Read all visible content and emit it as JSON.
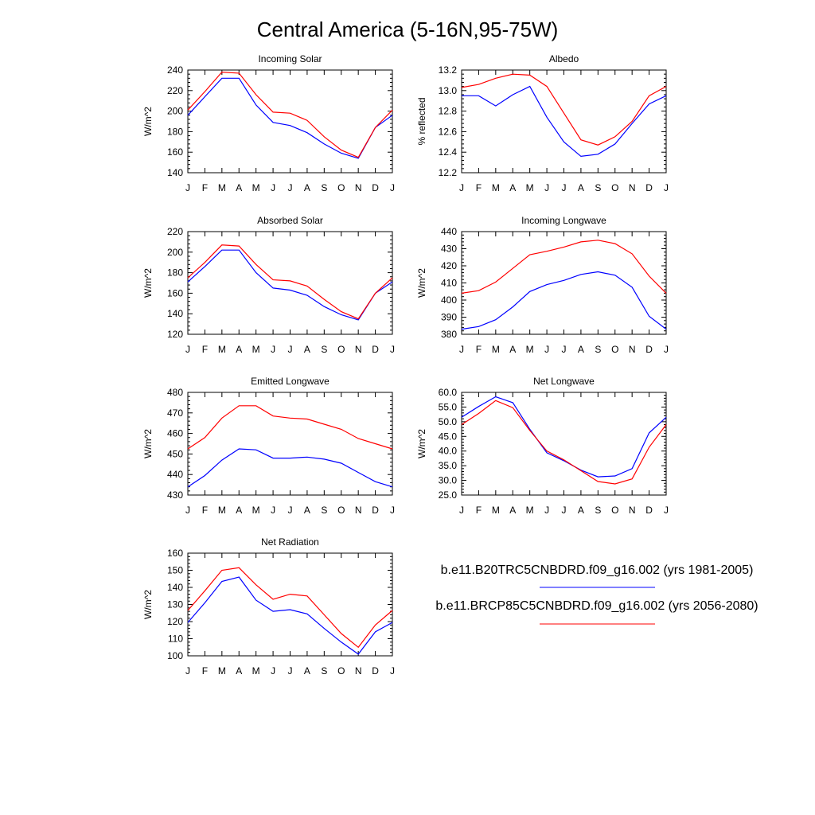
{
  "figure_title": "Central America (5-16N,95-75W)",
  "legend": {
    "entries": [
      {
        "label": "b.e11.B20TRC5CNBDRD.f09_g16.002 (yrs 1981-2005)",
        "color": "#0000ff"
      },
      {
        "label": "b.e11.BRCP85C5CNBDRD.f09_g16.002 (yrs 2056-2080)",
        "color": "#ff0000"
      }
    ]
  },
  "chart_data": [
    {
      "type": "line",
      "title": "Incoming Solar",
      "ylabel": "W/m^2",
      "xlabel": "",
      "categories": [
        "J",
        "F",
        "M",
        "A",
        "M",
        "J",
        "J",
        "A",
        "S",
        "O",
        "N",
        "D",
        "J"
      ],
      "ylim": [
        140,
        240
      ],
      "yticks": [
        "140",
        "160",
        "180",
        "200",
        "220",
        "240"
      ],
      "series": [
        {
          "name": "b.e11.B20TRC5CNBDRD.f09_g16.002 (yrs 1981-2005)",
          "color": "#0000ff",
          "values": [
            196,
            214,
            232,
            232,
            206,
            189,
            186,
            179,
            168,
            159,
            154,
            184,
            196
          ]
        },
        {
          "name": "b.e11.BRCP85C5CNBDRD.f09_g16.002 (yrs 2056-2080)",
          "color": "#ff0000",
          "values": [
            201,
            219,
            238,
            237,
            216,
            199,
            198,
            191,
            175,
            162,
            155,
            184,
            201
          ]
        }
      ]
    },
    {
      "type": "line",
      "title": "Albedo",
      "ylabel": "% reflected",
      "xlabel": "",
      "categories": [
        "J",
        "F",
        "M",
        "A",
        "M",
        "J",
        "J",
        "A",
        "S",
        "O",
        "N",
        "D",
        "J"
      ],
      "ylim": [
        12.2,
        13.2
      ],
      "yticks": [
        "12.2",
        "12.4",
        "12.6",
        "12.8",
        "13.0",
        "13.2"
      ],
      "series": [
        {
          "name": "b.e11.B20TRC5CNBDRD.f09_g16.002 (yrs 1981-2005)",
          "color": "#0000ff",
          "values": [
            12.95,
            12.95,
            12.85,
            12.96,
            13.04,
            12.74,
            12.5,
            12.36,
            12.38,
            12.48,
            12.68,
            12.87,
            12.95
          ]
        },
        {
          "name": "b.e11.BRCP85C5CNBDRD.f09_g16.002 (yrs 2056-2080)",
          "color": "#ff0000",
          "values": [
            13.03,
            13.06,
            13.12,
            13.16,
            13.15,
            13.04,
            12.78,
            12.52,
            12.47,
            12.55,
            12.7,
            12.95,
            13.04
          ]
        }
      ]
    },
    {
      "type": "line",
      "title": "Absorbed Solar",
      "ylabel": "W/m^2",
      "xlabel": "",
      "categories": [
        "J",
        "F",
        "M",
        "A",
        "M",
        "J",
        "J",
        "A",
        "S",
        "O",
        "N",
        "D",
        "J"
      ],
      "ylim": [
        120,
        220
      ],
      "yticks": [
        "120",
        "140",
        "160",
        "180",
        "200",
        "220"
      ],
      "series": [
        {
          "name": "b.e11.B20TRC5CNBDRD.f09_g16.002 (yrs 1981-2005)",
          "color": "#0000ff",
          "values": [
            171,
            186,
            202,
            202,
            180,
            165,
            163,
            158,
            147,
            139,
            134,
            160,
            171
          ]
        },
        {
          "name": "b.e11.BRCP85C5CNBDRD.f09_g16.002 (yrs 2056-2080)",
          "color": "#ff0000",
          "values": [
            175,
            190,
            207,
            206,
            188,
            173,
            172,
            167,
            154,
            142,
            135,
            160,
            175
          ]
        }
      ]
    },
    {
      "type": "line",
      "title": "Incoming Longwave",
      "ylabel": "W/m^2",
      "xlabel": "",
      "categories": [
        "J",
        "F",
        "M",
        "A",
        "M",
        "J",
        "J",
        "A",
        "S",
        "O",
        "N",
        "D",
        "J"
      ],
      "ylim": [
        380,
        440
      ],
      "yticks": [
        "380",
        "390",
        "400",
        "410",
        "420",
        "430",
        "440"
      ],
      "series": [
        {
          "name": "b.e11.B20TRC5CNBDRD.f09_g16.002 (yrs 1981-2005)",
          "color": "#0000ff",
          "values": [
            383,
            384.5,
            388.5,
            396,
            405,
            409,
            411.5,
            415,
            416.5,
            414.5,
            407.5,
            390.5,
            383
          ]
        },
        {
          "name": "b.e11.BRCP85C5CNBDRD.f09_g16.002 (yrs 2056-2080)",
          "color": "#ff0000",
          "values": [
            404,
            405.5,
            410.5,
            418.5,
            426.5,
            428.5,
            431,
            434,
            435,
            433,
            427,
            414,
            404
          ]
        }
      ]
    },
    {
      "type": "line",
      "title": "Emitted Longwave",
      "ylabel": "W/m^2",
      "xlabel": "",
      "categories": [
        "J",
        "F",
        "M",
        "A",
        "M",
        "J",
        "J",
        "A",
        "S",
        "O",
        "N",
        "D",
        "J"
      ],
      "ylim": [
        430,
        480
      ],
      "yticks": [
        "430",
        "440",
        "450",
        "460",
        "470",
        "480"
      ],
      "series": [
        {
          "name": "b.e11.B20TRC5CNBDRD.f09_g16.002 (yrs 1981-2005)",
          "color": "#0000ff",
          "values": [
            434,
            439.5,
            447,
            452.5,
            452,
            448,
            448,
            448.5,
            447.5,
            445.5,
            441,
            436.5,
            434
          ]
        },
        {
          "name": "b.e11.BRCP85C5CNBDRD.f09_g16.002 (yrs 2056-2080)",
          "color": "#ff0000",
          "values": [
            452.5,
            458,
            467.5,
            473.5,
            473.5,
            468.5,
            467.5,
            467,
            464.5,
            462,
            457.5,
            455,
            452.5
          ]
        }
      ]
    },
    {
      "type": "line",
      "title": "Net Longwave",
      "ylabel": "W/m^2",
      "xlabel": "",
      "categories": [
        "J",
        "F",
        "M",
        "A",
        "M",
        "J",
        "J",
        "A",
        "S",
        "O",
        "N",
        "D",
        "J"
      ],
      "ylim": [
        25,
        60
      ],
      "yticks": [
        "25.0",
        "30.0",
        "35.0",
        "40.0",
        "45.0",
        "50.0",
        "55.0",
        "60.0"
      ],
      "series": [
        {
          "name": "b.e11.B20TRC5CNBDRD.f09_g16.002 (yrs 1981-2005)",
          "color": "#0000ff",
          "values": [
            51.5,
            55.2,
            58.5,
            56.5,
            47.4,
            39.4,
            36.7,
            33.5,
            31.2,
            31.5,
            34,
            46.2,
            51.5
          ]
        },
        {
          "name": "b.e11.BRCP85C5CNBDRD.f09_g16.002 (yrs 2056-2080)",
          "color": "#ff0000",
          "values": [
            49,
            52.8,
            57.2,
            54.8,
            47,
            40,
            37,
            33.3,
            29.6,
            28.8,
            30.5,
            41.3,
            49
          ]
        }
      ]
    },
    {
      "type": "line",
      "title": "Net Radiation",
      "ylabel": "W/m^2",
      "xlabel": "",
      "categories": [
        "J",
        "F",
        "M",
        "A",
        "M",
        "J",
        "J",
        "A",
        "S",
        "O",
        "N",
        "D",
        "J"
      ],
      "ylim": [
        100,
        160
      ],
      "yticks": [
        "100",
        "110",
        "120",
        "130",
        "140",
        "150",
        "160"
      ],
      "series": [
        {
          "name": "b.e11.B20TRC5CNBDRD.f09_g16.002 (yrs 1981-2005)",
          "color": "#0000ff",
          "values": [
            119.5,
            131,
            143.5,
            146,
            132.5,
            126,
            127,
            124.5,
            116,
            108,
            101,
            114,
            119.5
          ]
        },
        {
          "name": "b.e11.BRCP85C5CNBDRD.f09_g16.002 (yrs 2056-2080)",
          "color": "#ff0000",
          "values": [
            126.5,
            138,
            150,
            151.5,
            141.5,
            133,
            136,
            135,
            124,
            113,
            105,
            118,
            126.5
          ]
        }
      ]
    }
  ]
}
